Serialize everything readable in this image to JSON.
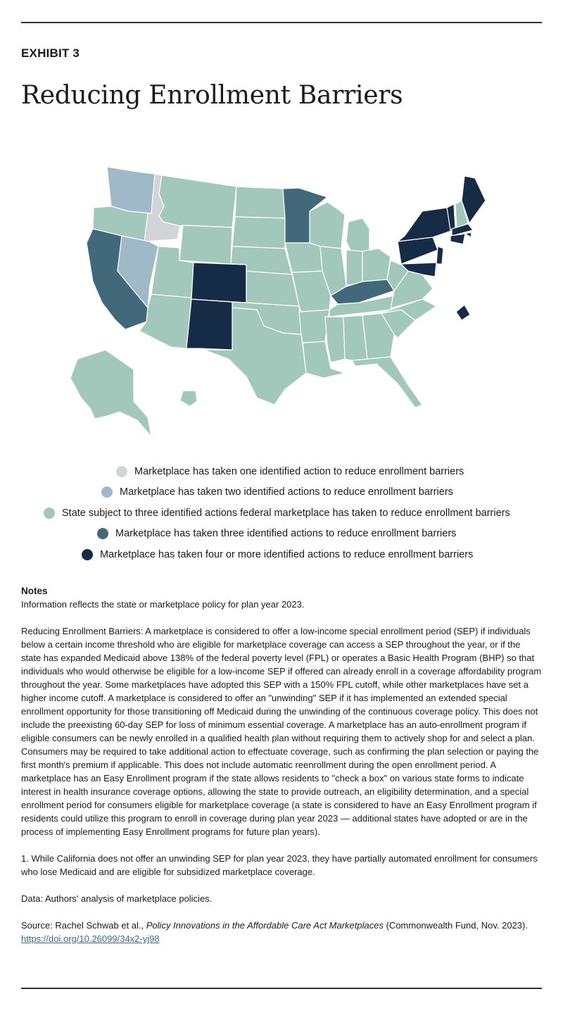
{
  "exhibit_label": "EXHIBIT 3",
  "title": "Reducing Enrollment Barriers",
  "colors": {
    "one": "#d2d5d8",
    "two": "#9fb9c9",
    "federal": "#a2c7bb",
    "three": "#426979",
    "four": "#162b46",
    "border": "#ffffff"
  },
  "legend": [
    {
      "key": "one",
      "label": "Marketplace has taken one identified action to reduce enrollment barriers"
    },
    {
      "key": "two",
      "label": "Marketplace has taken two identified actions to reduce enrollment barriers"
    },
    {
      "key": "federal",
      "label": "State subject to three identified actions federal marketplace has taken to reduce enrollment barriers"
    },
    {
      "key": "three",
      "label": "Marketplace has taken three identified actions to reduce enrollment barriers"
    },
    {
      "key": "four",
      "label": "Marketplace has taken four or more identified actions to reduce enrollment barriers"
    }
  ],
  "map_categories": {
    "one": [
      "ID"
    ],
    "two": [
      "WA",
      "NV"
    ],
    "three": [
      "CA",
      "MN",
      "KY"
    ],
    "four": [
      "CO",
      "NM",
      "ME",
      "VT",
      "NY",
      "PA",
      "NJ",
      "MD",
      "DC",
      "MA",
      "RI",
      "CT"
    ],
    "federal": [
      "OR",
      "MT",
      "WY",
      "UT",
      "AZ",
      "ND",
      "SD",
      "NE",
      "KS",
      "OK",
      "TX",
      "IA",
      "MO",
      "AR",
      "LA",
      "WI",
      "IL",
      "MI",
      "IN",
      "OH",
      "TN",
      "MS",
      "AL",
      "GA",
      "FL",
      "SC",
      "NC",
      "VA",
      "WV",
      "DE",
      "NH",
      "AK",
      "HI"
    ]
  },
  "notes": {
    "heading": "Notes",
    "line1": "Information reflects the state or marketplace policy for plan year 2023.",
    "para": "Reducing Enrollment Barriers: A marketplace is considered to offer a low-income special enrollment period (SEP) if individuals below a certain income threshold who are eligible for marketplace coverage can access a SEP throughout the year, or if the state has expanded Medicaid above 138% of the federal poverty level (FPL) or operates a Basic Health Program (BHP) so that individuals who would otherwise be eligible for a low-income SEP if offered can already enroll in a coverage affordability program throughout the year. Some marketplaces have adopted this SEP with a 150% FPL cutoff, while other marketplaces have set a higher income cutoff. A marketplace is considered to offer an \"unwinding\" SEP if it has implemented an extended special enrollment opportunity for those transitioning off Medicaid during the unwinding of the continuous coverage policy. This does not include the preexisting 60-day SEP for loss of minimum essential coverage. A marketplace has an auto-enrollment program if eligible consumers can be newly enrolled in a qualified health plan without requiring them to actively shop for and select a plan. Consumers may be required to take additional action to effectuate coverage, such as confirming the plan selection or paying the first month's premium if applicable. This does not include automatic reenrollment during the open enrollment period. A marketplace has an Easy Enrollment program if the state allows residents to \"check a box\" on various state forms to indicate interest in health insurance coverage options, allowing the state to provide outreach, an eligibility determination, and a special enrollment period for consumers eligible for marketplace coverage (a state is considered to have an Easy Enrollment program if residents could utilize this program to enroll in coverage during plan year 2023 — additional states have adopted or are in the process of implementing Easy Enrollment programs for future plan years).",
    "footnote": "1. While California does not offer an unwinding SEP for plan year 2023, they have partially automated enrollment for consumers who lose Medicaid and are eligible for subsidized marketplace coverage.",
    "data": "Data: Authors' analysis of marketplace policies.",
    "source_prefix": "Source: Rachel Schwab et al., ",
    "source_title": "Policy Innovations in the Affordable Care Act Marketplaces",
    "source_suffix": " (Commonwealth Fund, Nov. 2023). ",
    "source_link": "https://doi.org/10.26099/34x2-yj98"
  }
}
